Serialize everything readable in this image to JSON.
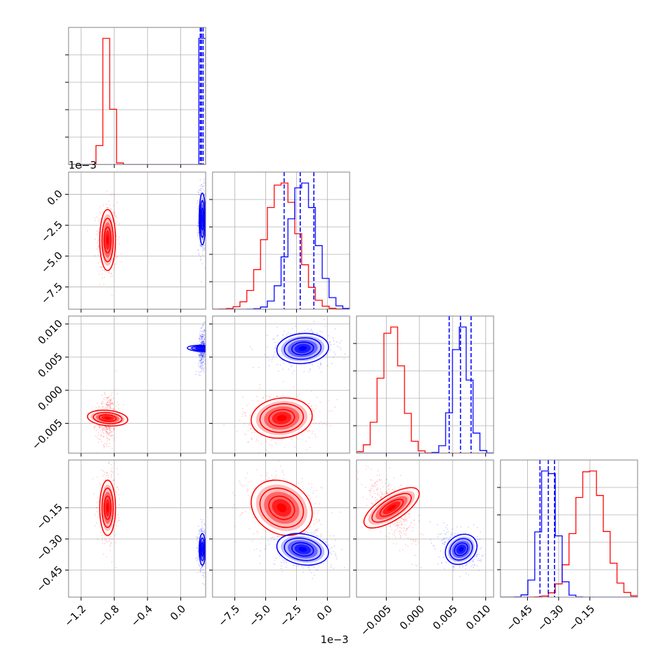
{
  "chart_data": {
    "type": "corner",
    "colors": {
      "red": "#ff0000",
      "blue": "#0000ff",
      "grid": "#b0b0b0",
      "frame": "#808080"
    },
    "offset_labels": {
      "p1_y": "1e−3",
      "p1_x": "1e−3"
    },
    "params": [
      {
        "range": [
          -1.35,
          0.3
        ],
        "ticks": [
          -1.2,
          -0.8,
          -0.4,
          0.0
        ],
        "tick_labels": [
          "−1.2",
          "−0.8",
          "−0.4",
          "0.0"
        ]
      },
      {
        "range": [
          -9.3,
          1.8
        ],
        "ticks": [
          -7.5,
          -5.0,
          -2.5,
          0.0
        ],
        "tick_labels": [
          "−7.5",
          "−5.0",
          "−2.5",
          "0.0"
        ]
      },
      {
        "range": [
          -0.0095,
          0.0112
        ],
        "ticks": [
          -0.005,
          0.0,
          0.005,
          0.01
        ],
        "tick_labels": [
          "−0.005",
          "0.000",
          "0.005",
          "0.010"
        ]
      },
      {
        "range": [
          -0.58,
          0.08
        ],
        "ticks": [
          -0.45,
          -0.3,
          -0.15
        ],
        "tick_labels": [
          "−0.45",
          "−0.30",
          "−0.15"
        ]
      }
    ],
    "series": [
      {
        "color": "red",
        "means": [
          -0.88,
          -3.7,
          -0.0042,
          -0.15
        ],
        "sds": [
          0.05,
          1.3,
          0.0016,
          0.07
        ]
      },
      {
        "color": "blue",
        "means": [
          0.26,
          -2.0,
          0.0063,
          -0.35
        ],
        "sds": [
          0.02,
          1.1,
          0.0012,
          0.04
        ]
      }
    ],
    "quantile_lines": [
      [
        0.235,
        0.25,
        0.27
      ],
      [
        -3.5,
        -2.2,
        -1.1
      ],
      [
        0.0045,
        0.0062,
        0.0078
      ],
      [
        -0.39,
        -0.35,
        -0.32
      ]
    ]
  }
}
